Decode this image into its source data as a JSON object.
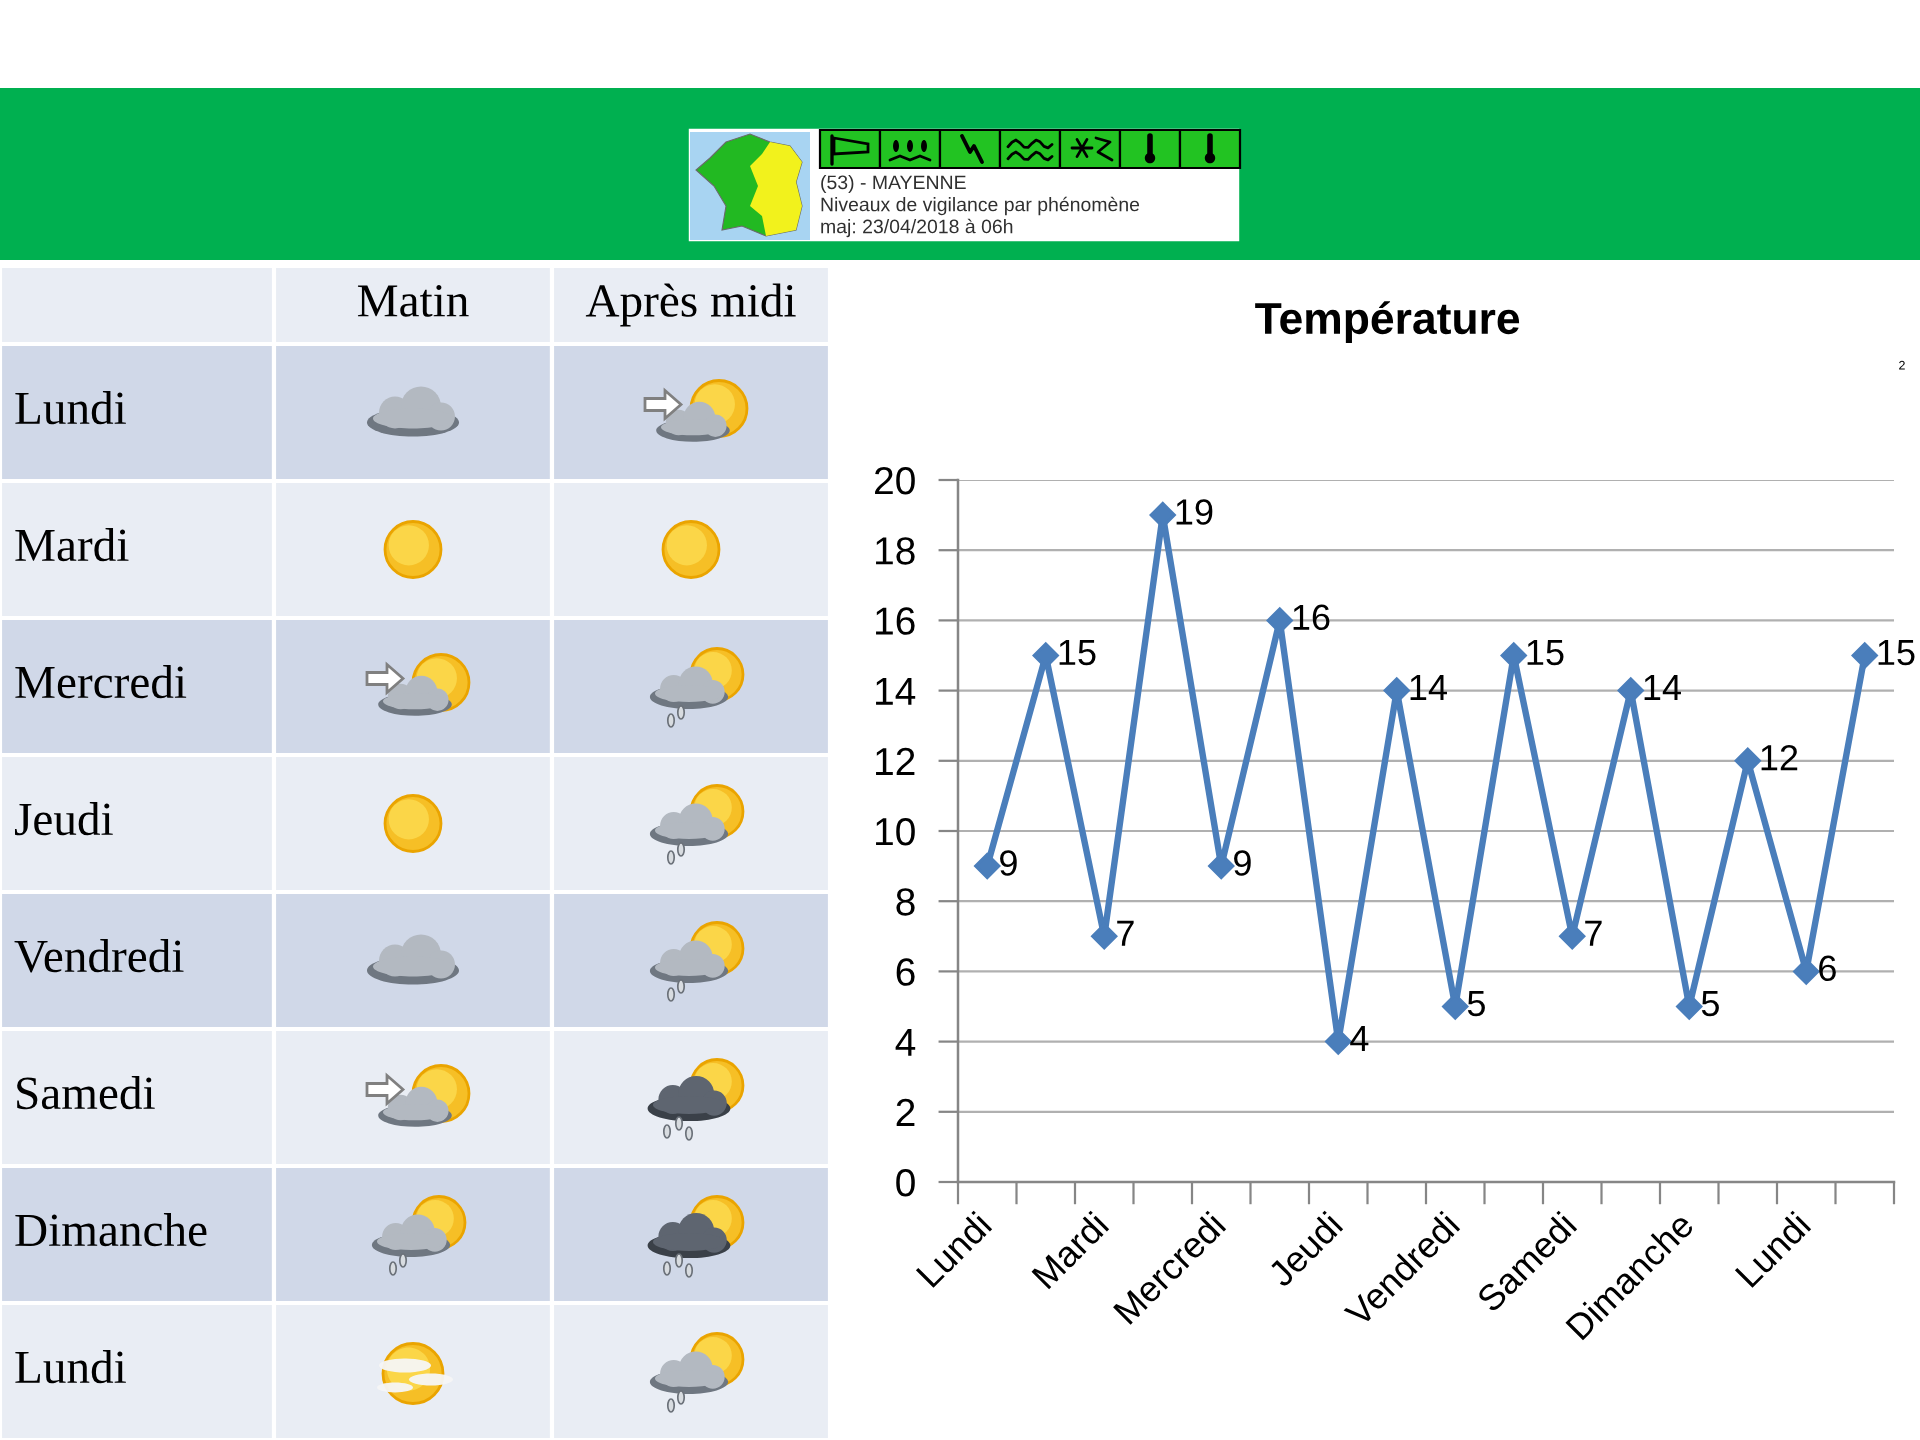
{
  "chart_data": [
    {
      "type": "other",
      "annotations": [
        "(53) - MAYENNE",
        "Niveaux de vigilance par phénomène",
        "maj: 23/04/2018 à 06h"
      ]
    },
    {
      "type": "other",
      "categories": [
        "Matin",
        "Après midi"
      ],
      "y_categories": [
        "Lundi",
        "Mardi",
        "Mercredi",
        "Jeudi",
        "Vendredi",
        "Samedi",
        "Dimanche",
        "Lundi"
      ]
    },
    {
      "type": "line",
      "title": "Température",
      "annotations": [
        "2"
      ],
      "categories": [
        "Lundi",
        null,
        "Mardi",
        null,
        "Mercredi",
        null,
        "Jeudi",
        null,
        "Vendredi",
        null,
        "Samedi",
        null,
        "Dimanche",
        null,
        "Lundi",
        null
      ],
      "series": [
        {
          "color": "#4a7ebb",
          "values": [
            9,
            15,
            7,
            19,
            9,
            16,
            4,
            14,
            5,
            15,
            7,
            14,
            5,
            12,
            6,
            15
          ]
        }
      ],
      "ylim": [
        0,
        20
      ],
      "yticks": [
        0,
        2,
        4,
        6,
        8,
        10,
        12,
        14,
        16,
        18,
        20
      ],
      "grid": "y",
      "marker": "diamond",
      "line_style": "solid",
      "data_labels": true
    }
  ]
}
